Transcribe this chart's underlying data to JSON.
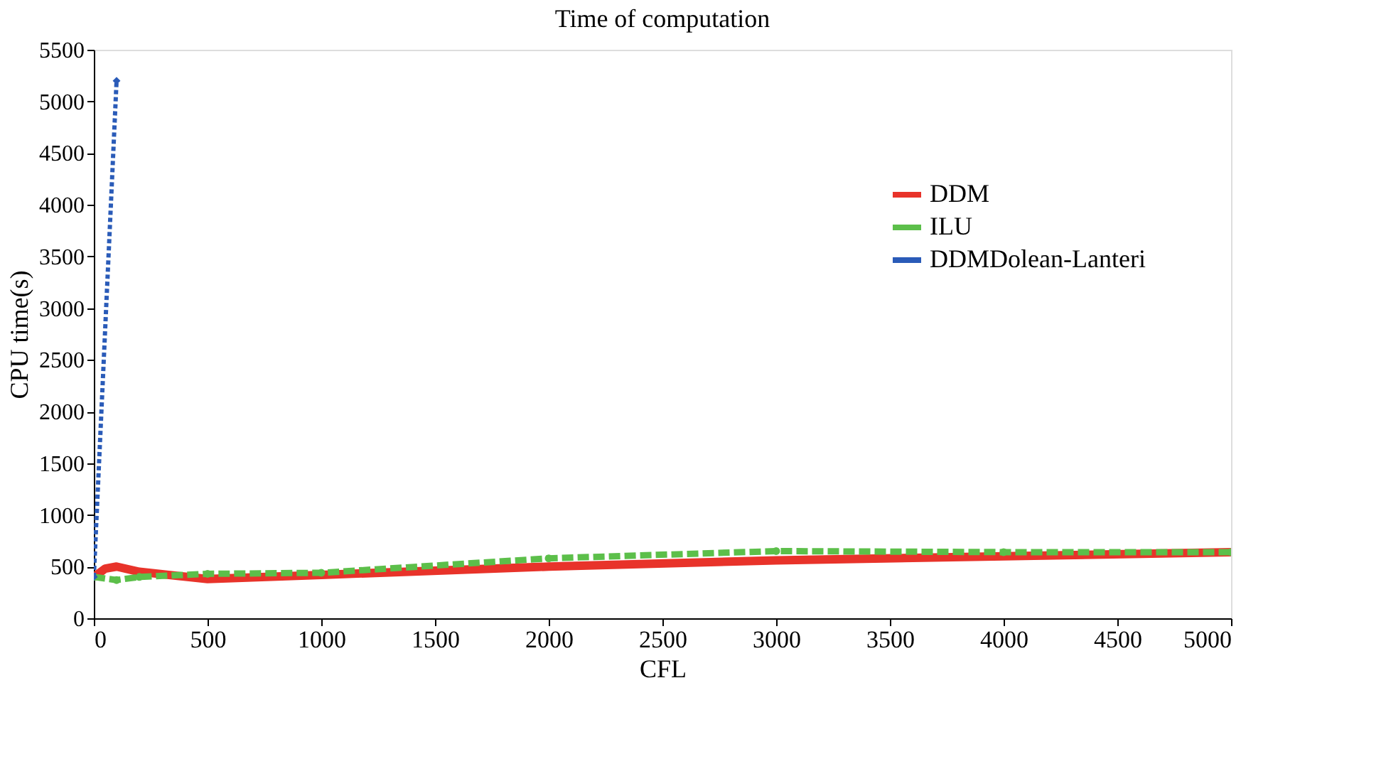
{
  "chart_data": {
    "type": "line",
    "title": "Time of computation",
    "xlabel": "CFL",
    "ylabel": "CPU time(s)",
    "xlim": [
      0,
      5000
    ],
    "xticks": [
      0,
      500,
      1000,
      1500,
      2000,
      2500,
      3000,
      3500,
      4000,
      4500,
      5000
    ],
    "ylim": [
      0,
      5500
    ],
    "yticks": [
      0,
      500,
      1000,
      1500,
      2000,
      2500,
      3000,
      3500,
      4000,
      4500,
      5000,
      5500
    ],
    "grid": false,
    "legend": "right",
    "series": [
      {
        "name": "DDM",
        "color": "#e8332a",
        "line_style": "solid",
        "marker": "none",
        "x": [
          0,
          50,
          100,
          200,
          500,
          1000,
          2000,
          3000,
          4000,
          5000
        ],
        "values": [
          400,
          480,
          500,
          450,
          380,
          420,
          500,
          560,
          600,
          640
        ]
      },
      {
        "name": "ILU",
        "color": "#5cbf4a",
        "line_style": "dashed",
        "marker": "circle",
        "x": [
          0,
          100,
          200,
          500,
          1000,
          2000,
          3000,
          4000,
          5000
        ],
        "values": [
          400,
          370,
          400,
          430,
          440,
          580,
          650,
          640,
          640
        ]
      },
      {
        "name": "DDMDolean-Lanteri",
        "color": "#2a5bb8",
        "line_style": "dotted",
        "marker": "diamond",
        "x": [
          0,
          100
        ],
        "values": [
          400,
          5200
        ]
      }
    ]
  }
}
